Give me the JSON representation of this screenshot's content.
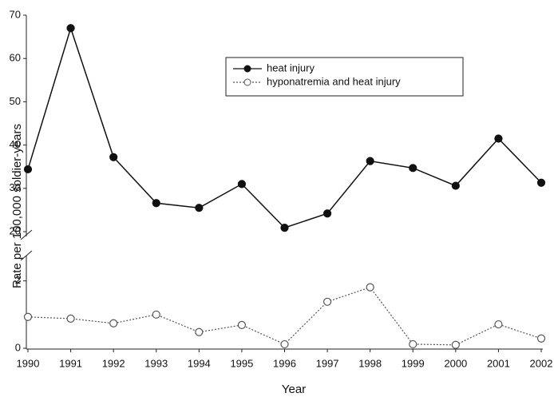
{
  "chart_data": {
    "type": "line",
    "ylabel": "Rate per 100,000 soldier-years",
    "xlabel": "Year",
    "categories": [
      "1990",
      "1991",
      "1992",
      "1993",
      "1994",
      "1995",
      "1996",
      "1997",
      "1998",
      "1999",
      "2000",
      "2001",
      "2002"
    ],
    "series": [
      {
        "name": "heat injury",
        "color": "#111111",
        "marker": "filled",
        "line": "solid",
        "values": [
          34.4,
          67,
          37.2,
          26.6,
          25.5,
          31,
          20.9,
          24.2,
          36.3,
          34.7,
          30.6,
          41.5,
          31.3
        ]
      },
      {
        "name": "hyponatremia and heat injury",
        "color": "#555555",
        "marker": "open",
        "line": "dotted",
        "axis": "y2",
        "values": [
          0.93,
          0.88,
          0.74,
          1,
          0.48,
          0.69,
          0.12,
          1.38,
          1.81,
          0.12,
          0.1,
          0.71,
          0.29
        ]
      }
    ],
    "ylim": [
      20,
      70
    ],
    "yticks": [
      20,
      30,
      40,
      50,
      60,
      70
    ],
    "y2lim": [
      0,
      2.75
    ],
    "y2ticks": [
      0,
      2
    ],
    "legend": "top-center"
  }
}
